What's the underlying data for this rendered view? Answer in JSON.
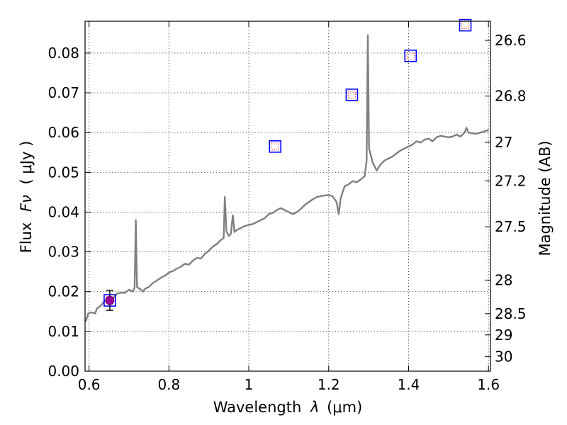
{
  "chart_data": {
    "type": "line",
    "xlabel": "Wavelength",
    "xlabel_symbol": "λ",
    "xlabel_unit": "(μm)",
    "ylabel": "Flux",
    "ylabel_symbol": "Fν",
    "ylabel_unit": "( μJy )",
    "y2label": "Magnitude (AB)",
    "xlim": [
      0.59,
      1.605
    ],
    "ylim": [
      0.0,
      0.088
    ],
    "xticks": [
      0.6,
      0.8,
      1.0,
      1.2,
      1.4,
      1.6
    ],
    "xtick_labels": [
      "0.6",
      "0.8",
      "1",
      "1.2",
      "1.4",
      "1.6"
    ],
    "yticks": [
      0.0,
      0.01,
      0.02,
      0.03,
      0.04,
      0.05,
      0.06,
      0.07,
      0.08
    ],
    "ytick_labels": [
      "0.00",
      "0.01",
      "0.02",
      "0.03",
      "0.04",
      "0.05",
      "0.06",
      "0.07",
      "0.08"
    ],
    "y2ticks": [
      26.6,
      26.8,
      27,
      27.2,
      27.5,
      28,
      28.5,
      29,
      30
    ],
    "y2tick_labels": [
      "26.6",
      "26.8",
      "27",
      "27.2",
      "27.5",
      "28",
      "28.5",
      "29",
      "30"
    ],
    "grid": true,
    "series": [
      {
        "type": "line",
        "color": "#808080",
        "points": [
          [
            0.592,
            0.0125
          ],
          [
            0.598,
            0.0145
          ],
          [
            0.606,
            0.0148
          ],
          [
            0.615,
            0.0145
          ],
          [
            0.62,
            0.0158
          ],
          [
            0.63,
            0.0165
          ],
          [
            0.64,
            0.0178
          ],
          [
            0.66,
            0.0182
          ],
          [
            0.67,
            0.0195
          ],
          [
            0.68,
            0.0197
          ],
          [
            0.69,
            0.0197
          ],
          [
            0.7,
            0.0205
          ],
          [
            0.71,
            0.02
          ],
          [
            0.714,
            0.021
          ],
          [
            0.717,
            0.038
          ],
          [
            0.72,
            0.0212
          ],
          [
            0.725,
            0.0208
          ],
          [
            0.73,
            0.0205
          ],
          [
            0.735,
            0.02
          ],
          [
            0.74,
            0.0207
          ],
          [
            0.75,
            0.0212
          ],
          [
            0.76,
            0.0222
          ],
          [
            0.77,
            0.0228
          ],
          [
            0.78,
            0.0235
          ],
          [
            0.79,
            0.024
          ],
          [
            0.8,
            0.0248
          ],
          [
            0.81,
            0.0252
          ],
          [
            0.82,
            0.0258
          ],
          [
            0.83,
            0.0263
          ],
          [
            0.84,
            0.027
          ],
          [
            0.85,
            0.0268
          ],
          [
            0.86,
            0.0278
          ],
          [
            0.87,
            0.0285
          ],
          [
            0.88,
            0.0283
          ],
          [
            0.89,
            0.0295
          ],
          [
            0.9,
            0.0303
          ],
          [
            0.91,
            0.0313
          ],
          [
            0.92,
            0.032
          ],
          [
            0.93,
            0.033
          ],
          [
            0.937,
            0.0335
          ],
          [
            0.94,
            0.0438
          ],
          [
            0.944,
            0.0352
          ],
          [
            0.95,
            0.034
          ],
          [
            0.955,
            0.0345
          ],
          [
            0.96,
            0.0392
          ],
          [
            0.964,
            0.035
          ],
          [
            0.97,
            0.0355
          ],
          [
            0.98,
            0.036
          ],
          [
            0.99,
            0.0365
          ],
          [
            1.0,
            0.0368
          ],
          [
            1.01,
            0.037
          ],
          [
            1.02,
            0.0375
          ],
          [
            1.03,
            0.038
          ],
          [
            1.04,
            0.0385
          ],
          [
            1.05,
            0.0395
          ],
          [
            1.06,
            0.0398
          ],
          [
            1.07,
            0.0405
          ],
          [
            1.08,
            0.041
          ],
          [
            1.09,
            0.0405
          ],
          [
            1.1,
            0.04
          ],
          [
            1.11,
            0.0395
          ],
          [
            1.12,
            0.04
          ],
          [
            1.13,
            0.0408
          ],
          [
            1.14,
            0.0418
          ],
          [
            1.15,
            0.0425
          ],
          [
            1.16,
            0.0432
          ],
          [
            1.17,
            0.0438
          ],
          [
            1.18,
            0.044
          ],
          [
            1.19,
            0.0442
          ],
          [
            1.2,
            0.0443
          ],
          [
            1.21,
            0.044
          ],
          [
            1.22,
            0.0425
          ],
          [
            1.225,
            0.0395
          ],
          [
            1.23,
            0.0435
          ],
          [
            1.24,
            0.0465
          ],
          [
            1.25,
            0.047
          ],
          [
            1.26,
            0.0478
          ],
          [
            1.27,
            0.0475
          ],
          [
            1.28,
            0.0482
          ],
          [
            1.29,
            0.049
          ],
          [
            1.295,
            0.053
          ],
          [
            1.298,
            0.0845
          ],
          [
            1.301,
            0.056
          ],
          [
            1.31,
            0.0525
          ],
          [
            1.32,
            0.0505
          ],
          [
            1.33,
            0.052
          ],
          [
            1.34,
            0.053
          ],
          [
            1.35,
            0.0535
          ],
          [
            1.36,
            0.054
          ],
          [
            1.37,
            0.0548
          ],
          [
            1.38,
            0.0555
          ],
          [
            1.39,
            0.056
          ],
          [
            1.4,
            0.0565
          ],
          [
            1.41,
            0.057
          ],
          [
            1.42,
            0.0578
          ],
          [
            1.43,
            0.0575
          ],
          [
            1.44,
            0.0582
          ],
          [
            1.45,
            0.0585
          ],
          [
            1.46,
            0.0578
          ],
          [
            1.47,
            0.0588
          ],
          [
            1.48,
            0.0592
          ],
          [
            1.49,
            0.059
          ],
          [
            1.5,
            0.0588
          ],
          [
            1.51,
            0.059
          ],
          [
            1.52,
            0.0595
          ],
          [
            1.53,
            0.059
          ],
          [
            1.535,
            0.0595
          ],
          [
            1.54,
            0.06
          ],
          [
            1.545,
            0.0612
          ],
          [
            1.55,
            0.06
          ],
          [
            1.56,
            0.0598
          ],
          [
            1.57,
            0.0597
          ],
          [
            1.58,
            0.06
          ],
          [
            1.59,
            0.0603
          ],
          [
            1.6,
            0.0607
          ]
        ]
      },
      {
        "type": "photometry-boxes",
        "points": [
          {
            "x": 0.652,
            "y": 0.0178
          },
          {
            "x": 1.066,
            "y": 0.0565
          },
          {
            "x": 1.258,
            "y": 0.0695
          },
          {
            "x": 1.405,
            "y": 0.0793
          },
          {
            "x": 1.542,
            "y": 0.087
          }
        ]
      },
      {
        "type": "measured-point",
        "point": {
          "x": 0.652,
          "y": 0.0178,
          "y_err": 0.0025
        }
      }
    ]
  }
}
